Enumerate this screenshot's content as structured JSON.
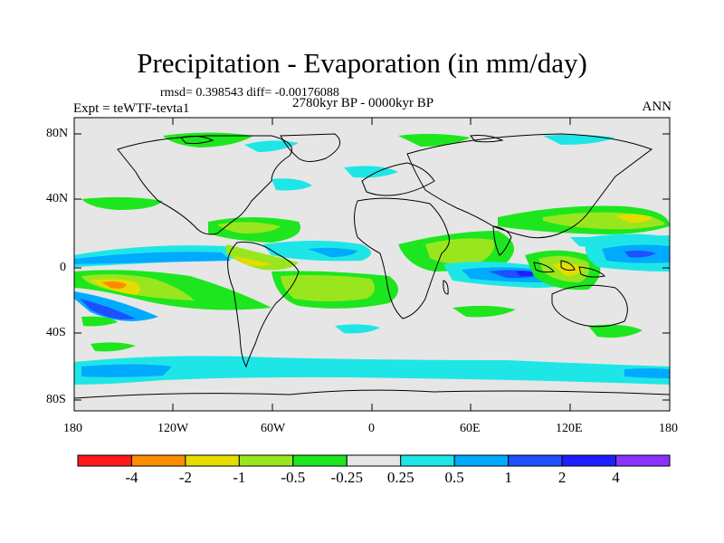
{
  "title": "Precipitation - Evaporation (in mm/day)",
  "stats": "rmsd= 0.398543  diff= -0.00176088",
  "period": "2780kyr BP - 0000kyr BP",
  "experiment": "Expt = teWTF-tevta1",
  "season": "ANN",
  "y_ticks": [
    "80N",
    "40N",
    "0",
    "40S",
    "80S"
  ],
  "x_ticks": [
    "180",
    "120W",
    "60W",
    "0",
    "60E",
    "120E",
    "180"
  ],
  "colorbar": {
    "colors": [
      "#ff1a1a",
      "#ff8c00",
      "#e6dc00",
      "#9ae61e",
      "#1ee61e",
      "#e6e6e6",
      "#1ee6e6",
      "#00aaff",
      "#1e50ff",
      "#1e1eff",
      "#8c32ff"
    ],
    "labels": [
      "-4",
      "-2",
      "-1",
      "-0.5",
      "-0.25",
      "0.25",
      "0.5",
      "1",
      "2",
      "4"
    ]
  },
  "colors": {
    "land_bg": "#e6e6e6",
    "coast": "#000000"
  }
}
